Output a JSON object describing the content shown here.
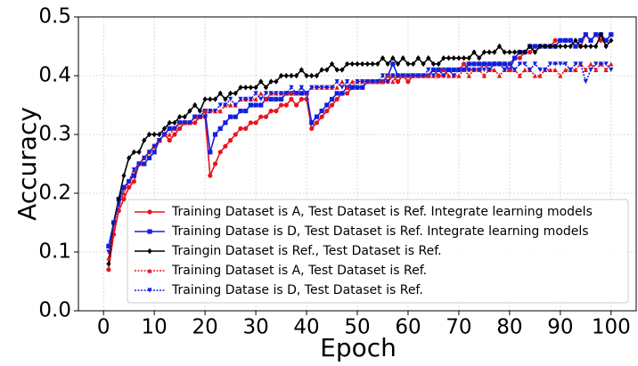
{
  "chart_data": {
    "type": "line",
    "xlabel": "Epoch",
    "ylabel": "Accuracy",
    "x": [
      1,
      2,
      3,
      4,
      5,
      6,
      7,
      8,
      9,
      10,
      11,
      12,
      13,
      14,
      15,
      16,
      17,
      18,
      19,
      20,
      21,
      22,
      23,
      24,
      25,
      26,
      27,
      28,
      29,
      30,
      31,
      32,
      33,
      34,
      35,
      36,
      37,
      38,
      39,
      40,
      41,
      42,
      43,
      44,
      45,
      46,
      47,
      48,
      49,
      50,
      51,
      52,
      53,
      54,
      55,
      56,
      57,
      58,
      59,
      60,
      61,
      62,
      63,
      64,
      65,
      66,
      67,
      68,
      69,
      70,
      71,
      72,
      73,
      74,
      75,
      76,
      77,
      78,
      79,
      80,
      81,
      82,
      83,
      84,
      85,
      86,
      87,
      88,
      89,
      90,
      91,
      92,
      93,
      94,
      95,
      96,
      97,
      98,
      99,
      100
    ],
    "series": [
      {
        "name": "Training Dataset is A, Test Dataset is Ref. Integrate learning models",
        "color": "#e8141c",
        "linestyle": "solid",
        "marker": "circle",
        "values": [
          0.07,
          0.13,
          0.17,
          0.19,
          0.21,
          0.22,
          0.25,
          0.26,
          0.27,
          0.28,
          0.29,
          0.3,
          0.29,
          0.3,
          0.31,
          0.32,
          0.32,
          0.32,
          0.33,
          0.33,
          0.23,
          0.25,
          0.27,
          0.28,
          0.29,
          0.3,
          0.31,
          0.31,
          0.32,
          0.32,
          0.33,
          0.33,
          0.34,
          0.34,
          0.35,
          0.35,
          0.36,
          0.35,
          0.36,
          0.36,
          0.31,
          0.32,
          0.33,
          0.34,
          0.35,
          0.36,
          0.37,
          0.37,
          0.38,
          0.38,
          0.38,
          0.39,
          0.39,
          0.39,
          0.39,
          0.39,
          0.4,
          0.39,
          0.4,
          0.39,
          0.4,
          0.4,
          0.4,
          0.4,
          0.41,
          0.4,
          0.4,
          0.41,
          0.41,
          0.41,
          0.42,
          0.41,
          0.41,
          0.41,
          0.42,
          0.41,
          0.42,
          0.42,
          0.42,
          0.42,
          0.43,
          0.43,
          0.44,
          0.44,
          0.45,
          0.45,
          0.45,
          0.45,
          0.46,
          0.46,
          0.46,
          0.46,
          0.45,
          0.45,
          0.47,
          0.46,
          0.47,
          0.46,
          0.46,
          0.47
        ]
      },
      {
        "name": "Training Datase is D, Test Dataset is Ref. Integrate learning models",
        "color": "#1020e0",
        "linestyle": "solid",
        "marker": "square",
        "values": [
          0.11,
          0.15,
          0.19,
          0.21,
          0.22,
          0.23,
          0.25,
          0.25,
          0.26,
          0.27,
          0.29,
          0.3,
          0.31,
          0.31,
          0.32,
          0.32,
          0.32,
          0.33,
          0.33,
          0.34,
          0.27,
          0.3,
          0.31,
          0.32,
          0.33,
          0.33,
          0.34,
          0.34,
          0.35,
          0.35,
          0.35,
          0.36,
          0.36,
          0.36,
          0.36,
          0.37,
          0.37,
          0.37,
          0.37,
          0.37,
          0.32,
          0.33,
          0.34,
          0.35,
          0.36,
          0.37,
          0.37,
          0.38,
          0.38,
          0.38,
          0.38,
          0.39,
          0.39,
          0.39,
          0.39,
          0.4,
          0.42,
          0.4,
          0.4,
          0.4,
          0.4,
          0.4,
          0.4,
          0.4,
          0.41,
          0.41,
          0.41,
          0.41,
          0.41,
          0.41,
          0.41,
          0.42,
          0.42,
          0.42,
          0.42,
          0.42,
          0.42,
          0.42,
          0.42,
          0.41,
          0.43,
          0.44,
          0.44,
          0.45,
          0.45,
          0.45,
          0.45,
          0.45,
          0.45,
          0.46,
          0.46,
          0.46,
          0.45,
          0.46,
          0.47,
          0.46,
          0.47,
          0.47,
          0.46,
          0.47
        ]
      },
      {
        "name": "Traingin Dataset is Ref., Test Dataset is Ref.",
        "color": "#000000",
        "linestyle": "solid",
        "marker": "diamond",
        "values": [
          0.08,
          0.15,
          0.19,
          0.23,
          0.26,
          0.27,
          0.27,
          0.29,
          0.3,
          0.3,
          0.3,
          0.31,
          0.32,
          0.32,
          0.33,
          0.33,
          0.34,
          0.35,
          0.34,
          0.36,
          0.36,
          0.36,
          0.37,
          0.36,
          0.37,
          0.37,
          0.38,
          0.38,
          0.38,
          0.38,
          0.39,
          0.38,
          0.39,
          0.39,
          0.4,
          0.4,
          0.4,
          0.4,
          0.41,
          0.4,
          0.4,
          0.4,
          0.41,
          0.41,
          0.42,
          0.41,
          0.41,
          0.42,
          0.42,
          0.42,
          0.42,
          0.42,
          0.42,
          0.42,
          0.43,
          0.42,
          0.43,
          0.42,
          0.43,
          0.42,
          0.42,
          0.43,
          0.42,
          0.43,
          0.42,
          0.42,
          0.43,
          0.43,
          0.43,
          0.43,
          0.43,
          0.43,
          0.44,
          0.43,
          0.44,
          0.44,
          0.44,
          0.45,
          0.44,
          0.44,
          0.44,
          0.44,
          0.44,
          0.45,
          0.44,
          0.45,
          0.45,
          0.45,
          0.45,
          0.45,
          0.45,
          0.45,
          0.46,
          0.45,
          0.45,
          0.45,
          0.45,
          0.47,
          0.45,
          0.46
        ]
      },
      {
        "name": "Training Dataset is A, Test Dataset is Ref.",
        "color": "#e8141c",
        "linestyle": "dotted",
        "marker": "triangle-up",
        "values": [
          0.09,
          0.14,
          0.18,
          0.2,
          0.22,
          0.24,
          0.25,
          0.26,
          0.27,
          0.28,
          0.29,
          0.3,
          0.3,
          0.31,
          0.32,
          0.32,
          0.32,
          0.33,
          0.33,
          0.34,
          0.34,
          0.34,
          0.34,
          0.35,
          0.35,
          0.35,
          0.36,
          0.36,
          0.36,
          0.36,
          0.37,
          0.36,
          0.37,
          0.37,
          0.37,
          0.37,
          0.37,
          0.37,
          0.38,
          0.37,
          0.38,
          0.38,
          0.38,
          0.38,
          0.38,
          0.38,
          0.39,
          0.38,
          0.39,
          0.39,
          0.39,
          0.39,
          0.39,
          0.39,
          0.39,
          0.4,
          0.39,
          0.4,
          0.4,
          0.4,
          0.4,
          0.4,
          0.4,
          0.4,
          0.4,
          0.4,
          0.41,
          0.4,
          0.4,
          0.4,
          0.41,
          0.4,
          0.41,
          0.41,
          0.4,
          0.41,
          0.41,
          0.4,
          0.41,
          0.41,
          0.41,
          0.4,
          0.41,
          0.41,
          0.4,
          0.4,
          0.41,
          0.41,
          0.41,
          0.4,
          0.41,
          0.41,
          0.41,
          0.42,
          0.41,
          0.42,
          0.41,
          0.42,
          0.41,
          0.42
        ]
      },
      {
        "name": "Training Datase is D, Test Dataset is Ref.",
        "color": "#1020e0",
        "linestyle": "dotted",
        "marker": "triangle-down",
        "values": [
          0.1,
          0.15,
          0.18,
          0.21,
          0.22,
          0.24,
          0.25,
          0.26,
          0.27,
          0.28,
          0.29,
          0.3,
          0.31,
          0.31,
          0.32,
          0.32,
          0.32,
          0.33,
          0.33,
          0.33,
          0.34,
          0.34,
          0.35,
          0.35,
          0.36,
          0.35,
          0.36,
          0.36,
          0.36,
          0.37,
          0.36,
          0.37,
          0.37,
          0.37,
          0.37,
          0.37,
          0.38,
          0.37,
          0.38,
          0.37,
          0.38,
          0.38,
          0.38,
          0.38,
          0.38,
          0.39,
          0.38,
          0.39,
          0.38,
          0.39,
          0.39,
          0.39,
          0.39,
          0.39,
          0.4,
          0.39,
          0.4,
          0.4,
          0.4,
          0.4,
          0.4,
          0.4,
          0.4,
          0.41,
          0.4,
          0.41,
          0.4,
          0.41,
          0.4,
          0.41,
          0.41,
          0.41,
          0.41,
          0.41,
          0.41,
          0.41,
          0.42,
          0.42,
          0.41,
          0.42,
          0.41,
          0.42,
          0.42,
          0.41,
          0.42,
          0.41,
          0.41,
          0.42,
          0.42,
          0.42,
          0.42,
          0.41,
          0.42,
          0.42,
          0.39,
          0.41,
          0.42,
          0.42,
          0.42,
          0.41
        ]
      }
    ],
    "xlim": [
      -4.95,
      104.95
    ],
    "xticks": [
      0,
      10,
      20,
      30,
      40,
      50,
      60,
      70,
      80,
      90,
      100
    ],
    "ylim": [
      0,
      0.5
    ],
    "yticks": [
      {
        "value": 0,
        "label": "0.0"
      },
      0.1,
      0.2,
      0.3,
      0.4,
      0.5
    ],
    "grid": true,
    "legend": "lower right"
  }
}
